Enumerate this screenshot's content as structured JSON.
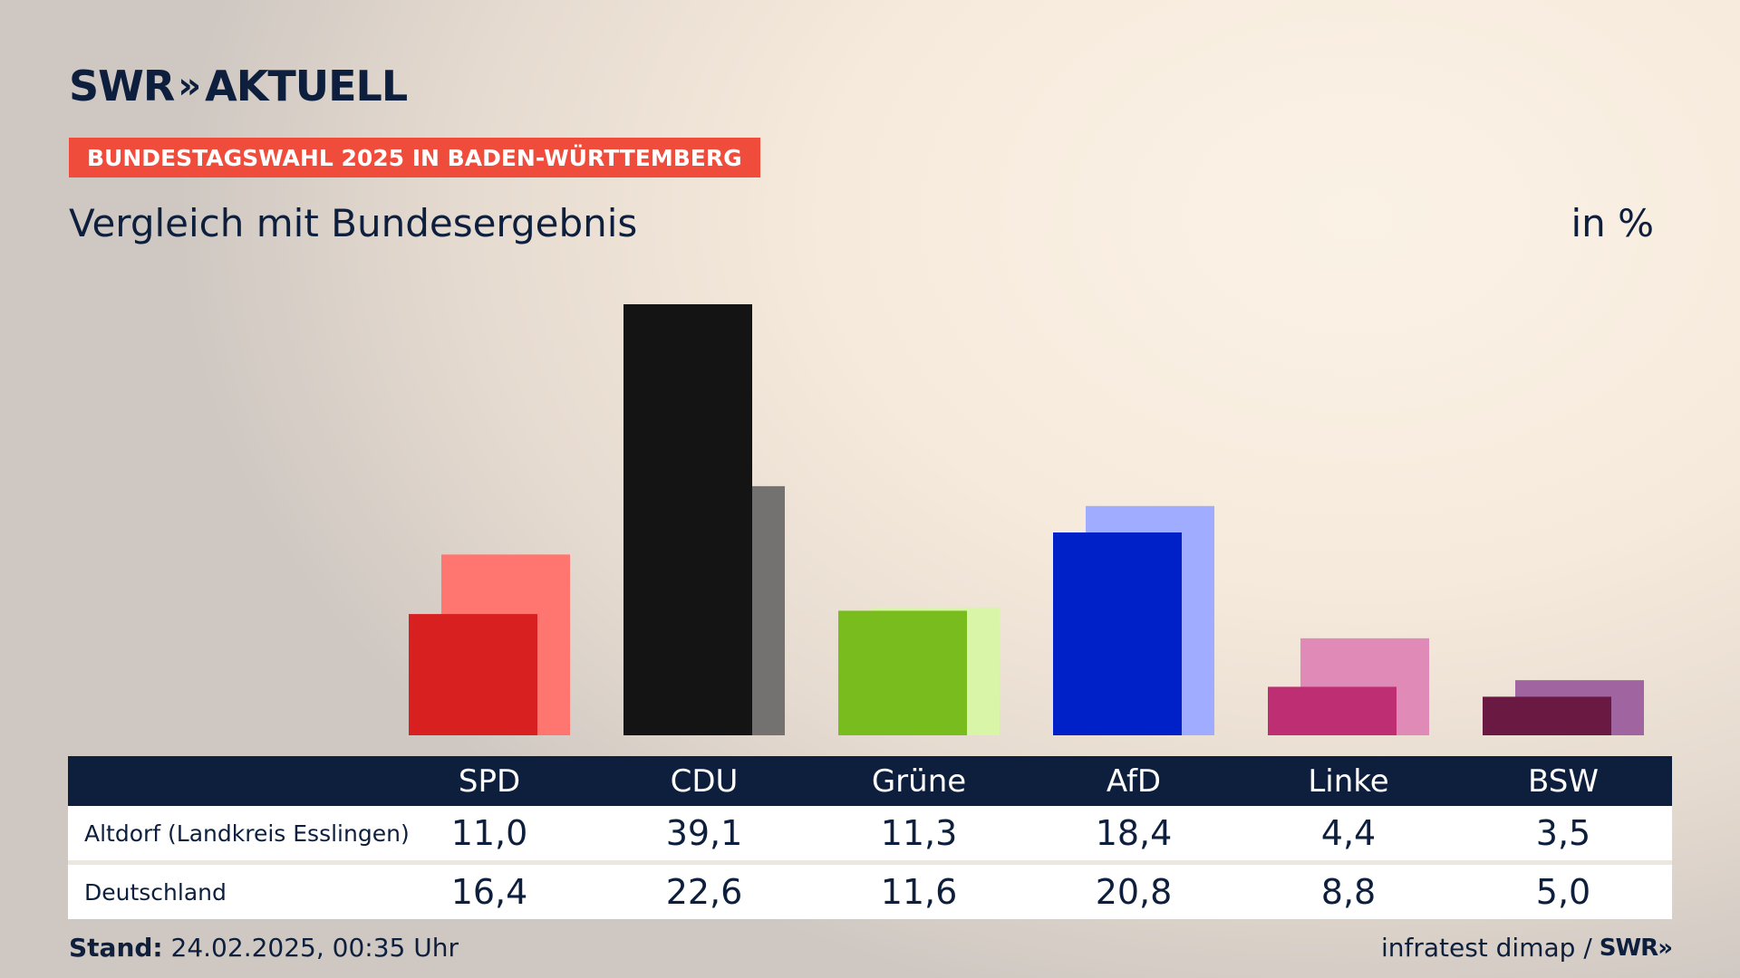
{
  "header": {
    "brand": "SWR",
    "brand_chevrons": "»",
    "brand_suffix": "AKTUELL",
    "badge": "BUNDESTAGSWAHL 2025 IN BADEN-WÜRTTEMBERG",
    "subtitle": "Vergleich mit Bundesergebnis",
    "unit": "in %"
  },
  "colors": {
    "badge": "#f04c3c",
    "navy": "#0d1f3c"
  },
  "chart_data": {
    "type": "bar",
    "categories": [
      "SPD",
      "CDU",
      "Grüne",
      "AfD",
      "Linke",
      "BSW"
    ],
    "series": [
      {
        "name": "Altdorf (Landkreis Esslingen)",
        "values": [
          11.0,
          39.1,
          11.3,
          18.4,
          4.4,
          3.5
        ],
        "colors": [
          "#d82020",
          "#141414",
          "#78bc1e",
          "#0020c8",
          "#bd2f72",
          "#6a1a42"
        ]
      },
      {
        "name": "Deutschland",
        "values": [
          16.4,
          22.6,
          11.6,
          20.8,
          8.8,
          5.0
        ],
        "colors": [
          "#ff7670",
          "#747270",
          "#d8f5a8",
          "#a0acff",
          "#e08ab8",
          "#a064a0"
        ]
      }
    ],
    "ylim": [
      0,
      40
    ]
  },
  "table": {
    "headers": [
      "SPD",
      "CDU",
      "Grüne",
      "AfD",
      "Linke",
      "BSW"
    ],
    "rows": [
      {
        "label": "Altdorf (Landkreis Esslingen)",
        "values": [
          "11,0",
          "39,1",
          "11,3",
          "18,4",
          "4,4",
          "3,5"
        ]
      },
      {
        "label": "Deutschland",
        "values": [
          "16,4",
          "22,6",
          "11,6",
          "20,8",
          "8,8",
          "5,0"
        ]
      }
    ]
  },
  "footer": {
    "stand_label": "Stand:",
    "stand_value": "24.02.2025, 00:35 Uhr",
    "source": "infratest dimap /",
    "source_brand": "SWR»"
  }
}
